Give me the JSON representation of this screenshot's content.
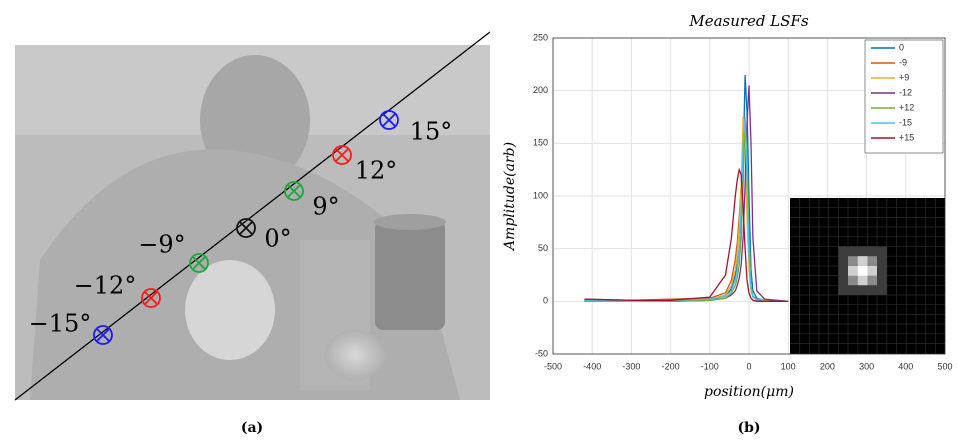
{
  "panel_a": {
    "caption": "(a)",
    "markers": [
      {
        "label": "−15°",
        "color": "#1a1aff"
      },
      {
        "label": "−12°",
        "color": "#ff1a1a"
      },
      {
        "label": "−9°",
        "color": "#1aa83a"
      },
      {
        "label": "0°",
        "color": "#111111"
      },
      {
        "label": "9°",
        "color": "#1aa83a"
      },
      {
        "label": "12°",
        "color": "#ff1a1a"
      },
      {
        "label": "15°",
        "color": "#1a1aff"
      }
    ]
  },
  "chart_data": {
    "type": "line",
    "title": "Measured LSFs",
    "caption": "(b)",
    "x_label": "position(μm)",
    "y_label": "Amplitude(arb)",
    "x": [
      -420,
      -300,
      -200,
      -100,
      -60,
      -45,
      -35,
      -30,
      -25,
      -20,
      -15,
      -10,
      -5,
      0,
      5,
      10,
      20,
      40,
      100
    ],
    "series": [
      {
        "name": "0",
        "color": "#0072bd",
        "values": [
          0,
          1,
          0,
          2,
          5,
          12,
          25,
          35,
          50,
          80,
          130,
          215,
          180,
          100,
          30,
          10,
          3,
          1,
          0
        ]
      },
      {
        "name": "-9",
        "color": "#d95319",
        "values": [
          2,
          1,
          2,
          3,
          8,
          20,
          40,
          55,
          80,
          110,
          140,
          155,
          100,
          40,
          12,
          5,
          2,
          1,
          0
        ]
      },
      {
        "name": "+9",
        "color": "#edb120",
        "values": [
          1,
          0,
          1,
          2,
          6,
          15,
          30,
          45,
          70,
          110,
          175,
          150,
          80,
          30,
          10,
          4,
          2,
          1,
          0
        ]
      },
      {
        "name": "-12",
        "color": "#7e2f8e",
        "values": [
          0,
          1,
          0,
          1,
          3,
          6,
          10,
          15,
          22,
          35,
          60,
          110,
          170,
          205,
          150,
          60,
          10,
          2,
          0
        ]
      },
      {
        "name": "+12",
        "color": "#77ac30",
        "values": [
          0,
          0,
          0,
          1,
          3,
          8,
          15,
          22,
          35,
          60,
          110,
          170,
          140,
          60,
          15,
          5,
          2,
          0,
          0
        ]
      },
      {
        "name": "-15",
        "color": "#4dbeee",
        "values": [
          1,
          0,
          1,
          2,
          5,
          10,
          20,
          30,
          50,
          90,
          150,
          175,
          120,
          45,
          12,
          4,
          1,
          0,
          0
        ]
      },
      {
        "name": "+15",
        "color": "#a2142f",
        "values": [
          2,
          1,
          1,
          4,
          25,
          60,
          100,
          115,
          125,
          120,
          90,
          50,
          20,
          8,
          3,
          1,
          0,
          0,
          0
        ]
      }
    ],
    "xlim": [
      -500,
      500
    ],
    "xticks": [
      -500,
      -400,
      -300,
      -200,
      -100,
      0,
      100,
      200,
      300,
      400,
      500
    ],
    "ylim": [
      -50,
      250
    ],
    "yticks": [
      -50,
      0,
      50,
      100,
      150,
      200,
      250
    ],
    "grid": true,
    "legend": "top-right"
  }
}
